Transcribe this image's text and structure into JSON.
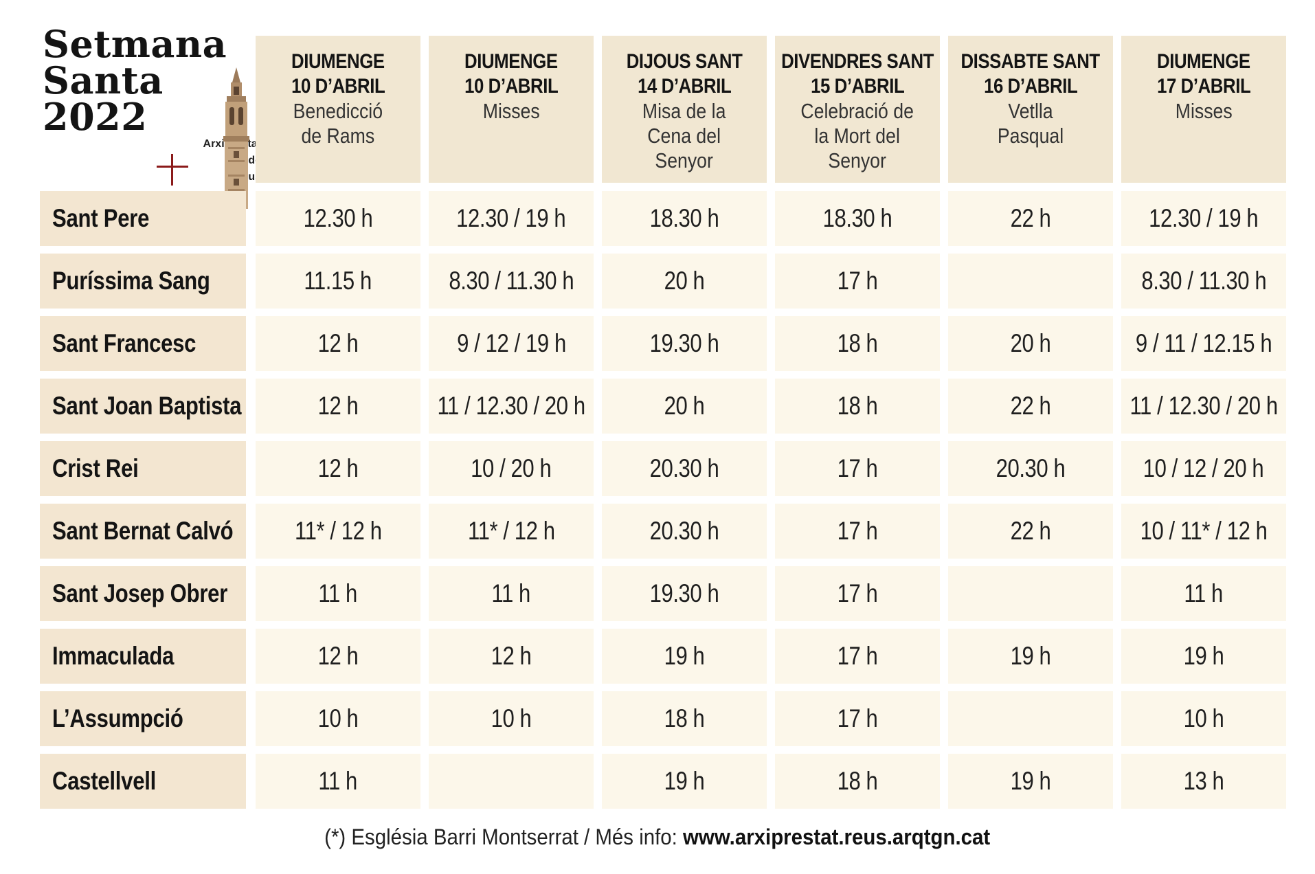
{
  "header": {
    "title_lines": [
      "Setmana",
      "Santa",
      "2022"
    ],
    "org_lines": [
      "Arxiprestat",
      "de",
      "Reus"
    ]
  },
  "columns": [
    {
      "day": "DIUMENGE",
      "date": "10 D’ABRIL",
      "desc": "Benedicció\nde Rams"
    },
    {
      "day": "DIUMENGE",
      "date": "10 D’ABRIL",
      "desc": "Misses"
    },
    {
      "day": "DIJOUS SANT",
      "date": "14 D’ABRIL",
      "desc": "Misa de la\nCena del\nSenyor"
    },
    {
      "day": "DIVENDRES SANT",
      "date": "15 D’ABRIL",
      "desc": "Celebració de\nla Mort del\nSenyor"
    },
    {
      "day": "DISSABTE SANT",
      "date": "16 D’ABRIL",
      "desc": "Vetlla\nPasqual"
    },
    {
      "day": "DIUMENGE",
      "date": "17 D’ABRIL",
      "desc": "Misses"
    }
  ],
  "rows": [
    {
      "church": "Sant Pere",
      "times": [
        "12.30 h",
        "12.30 / 19 h",
        "18.30 h",
        "18.30 h",
        "22 h",
        "12.30 / 19 h"
      ]
    },
    {
      "church": "Puríssima Sang",
      "times": [
        "11.15 h",
        "8.30 / 11.30 h",
        "20 h",
        "17 h",
        "",
        "8.30 / 11.30 h"
      ]
    },
    {
      "church": "Sant Francesc",
      "times": [
        "12 h",
        "9 / 12 / 19 h",
        "19.30 h",
        "18 h",
        "20 h",
        "9 / 11 / 12.15 h"
      ]
    },
    {
      "church": "Sant Joan Baptista",
      "times": [
        "12 h",
        "11 / 12.30 / 20 h",
        "20 h",
        "18 h",
        "22 h",
        "11 / 12.30 / 20 h"
      ]
    },
    {
      "church": "Crist Rei",
      "times": [
        "12 h",
        "10 / 20 h",
        "20.30 h",
        "17 h",
        "20.30 h",
        "10 / 12 / 20 h"
      ]
    },
    {
      "church": "Sant Bernat Calvó",
      "times": [
        "11* / 12 h",
        "11* / 12 h",
        "20.30 h",
        "17 h",
        "22 h",
        "10 / 11* / 12 h"
      ]
    },
    {
      "church": "Sant Josep Obrer",
      "times": [
        "11 h",
        "11 h",
        "19.30 h",
        "17 h",
        "",
        "11 h"
      ]
    },
    {
      "church": "Immaculada",
      "times": [
        "12 h",
        "12 h",
        "19 h",
        "17 h",
        "19 h",
        "19 h"
      ]
    },
    {
      "church": "L’Assumpció",
      "times": [
        "10 h",
        "10 h",
        "18 h",
        "17 h",
        "",
        "10 h"
      ]
    },
    {
      "church": "Castellvell",
      "times": [
        "11 h",
        "",
        "19 h",
        "18 h",
        "19 h",
        "13 h"
      ]
    }
  ],
  "footer": {
    "note": "(*) Església Barri Montserrat / Més info: ",
    "url": "www.arxiprestat.reus.arqtgn.cat"
  },
  "colors": {
    "header_bg": "#f1e7d2",
    "name_bg": "#f3e6d1",
    "cell_bg": "#fcf7ea",
    "cross": "#8b1a1a"
  },
  "icons": [
    "cross-icon",
    "bell-tower-illustration"
  ]
}
